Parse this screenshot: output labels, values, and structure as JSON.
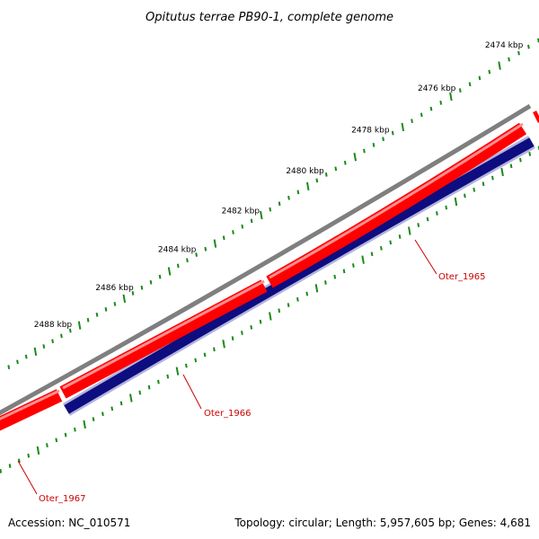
{
  "title": "Opitutus terrae PB90-1, complete genome",
  "accession": "Accession: NC_010571",
  "summary": "Topology: circular; Length: 5,957,605 bp; Genes: 4,681",
  "colors": {
    "backbone": "#7f7f7f",
    "forward_gene": "#ff0000",
    "reverse_gene": "#0d0d80",
    "tick": "#1a8a1a",
    "label": "#cc0000"
  },
  "scale": {
    "unit": "kbp",
    "major_ticks": [
      2474,
      2476,
      2478,
      2480,
      2482,
      2484,
      2486,
      2488
    ],
    "major_labels": [
      "2474 kbp",
      "2476 kbp",
      "2478 kbp",
      "2480 kbp",
      "2482 kbp",
      "2484 kbp",
      "2486 kbp",
      "2488 kbp"
    ]
  },
  "genes": [
    {
      "name": "Oter_1965",
      "strand": "reverse"
    },
    {
      "name": "Oter_1966",
      "strand": "forward"
    },
    {
      "name": "Oter_1967",
      "strand": "forward"
    }
  ]
}
